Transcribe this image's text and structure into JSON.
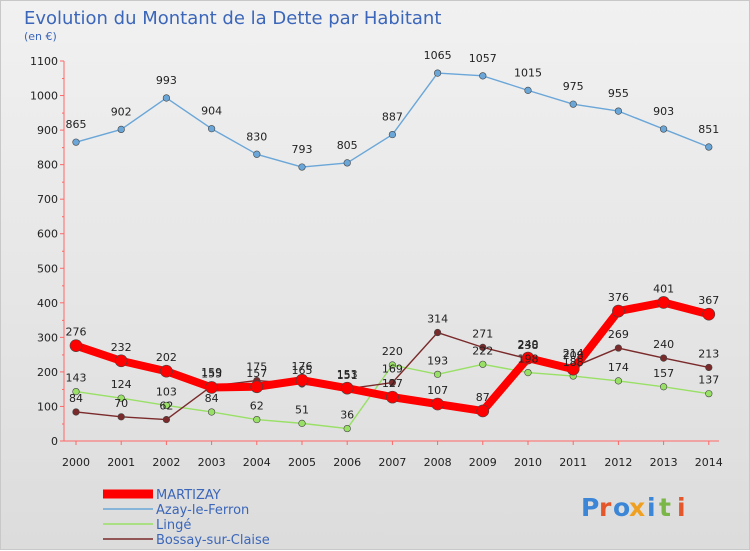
{
  "chart_data": {
    "type": "line",
    "title": "Evolution du Montant de la Dette par Habitant",
    "subtitle": "(en €)",
    "xlabel": "",
    "ylabel": "",
    "ylim": [
      0,
      1100
    ],
    "yticks": [
      0,
      100,
      200,
      300,
      400,
      500,
      600,
      700,
      800,
      900,
      1000,
      1100
    ],
    "grid": false,
    "legend_position": "bottom-left",
    "x": [
      "2000",
      "2001",
      "2002",
      "2003",
      "2004",
      "2005",
      "2006",
      "2007",
      "2008",
      "2009",
      "2010",
      "2011",
      "2012",
      "2013",
      "2014"
    ],
    "series": [
      {
        "name": "MARTIZAY",
        "color": "#ff0000",
        "values": [
          276,
          232,
          202,
          155,
          157,
          176,
          153,
          127,
          107,
          87,
          240,
          208,
          376,
          401,
          367
        ],
        "labels": [
          "276",
          "232",
          "202",
          "155",
          "157",
          "176",
          "153",
          "127",
          "107",
          "87",
          "240",
          "208",
          "376",
          "401",
          "367"
        ]
      },
      {
        "name": "Azay-le-Ferron",
        "color": "#6aa6d8",
        "values": [
          865,
          902,
          993,
          904,
          830,
          793,
          805,
          887,
          1065,
          1057,
          1015,
          975,
          955,
          903,
          851
        ],
        "labels": [
          "865",
          "902",
          "993",
          "904",
          "830",
          "793",
          "805",
          "887",
          "1065",
          "1057",
          "1015",
          "975",
          "955",
          "903",
          "851"
        ]
      },
      {
        "name": "Lingé",
        "color": "#99e066",
        "values": [
          143,
          124,
          103,
          84,
          62,
          51,
          36,
          220,
          193,
          222,
          198,
          188,
          174,
          157,
          137
        ],
        "labels": [
          "143",
          "124",
          "103",
          "84",
          "62",
          "51",
          "36",
          "220",
          "193",
          "222",
          "198",
          "188",
          "174",
          "157",
          "137"
        ]
      },
      {
        "name": "Bossay-sur-Claise",
        "color": "#7a2a2a",
        "values": [
          84,
          70,
          62,
          159,
          175,
          165,
          151,
          169,
          314,
          271,
          238,
          214,
          269,
          240,
          213
        ],
        "labels": [
          "84",
          "70",
          "62",
          "159",
          "175",
          "165",
          "151",
          "169",
          "314",
          "271",
          "238",
          "214",
          "269",
          "240",
          "213"
        ]
      }
    ]
  },
  "branding": {
    "logo_text": "Proxiti"
  }
}
